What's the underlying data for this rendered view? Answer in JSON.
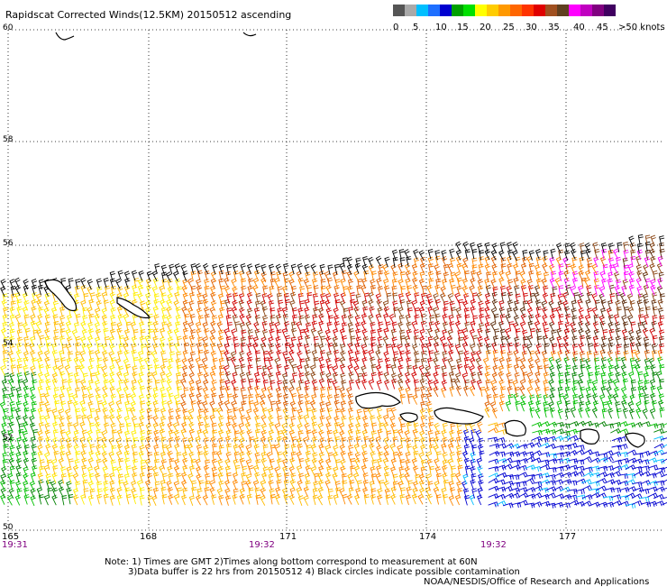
{
  "title": "Rapidscat Corrected Winds(12.5KM) 20150512 ascending",
  "legend": {
    "colors": [
      "#555555",
      "#a9a9a9",
      "#00bfff",
      "#1e6fff",
      "#0000d0",
      "#00a000",
      "#00e000",
      "#ffff00",
      "#ffcc00",
      "#ff9900",
      "#ff6600",
      "#ff3300",
      "#e00000",
      "#a05020",
      "#604020",
      "#ff00ff",
      "#c000c0",
      "#800080",
      "#400060"
    ],
    "ticks": [
      "0",
      "5",
      "10",
      "15",
      "20",
      "25",
      "30",
      "35",
      "40",
      "45",
      ">50 knots"
    ]
  },
  "axes": {
    "lat_labels": [
      "60",
      "58",
      "56",
      "54",
      "52",
      "50"
    ],
    "lon_labels": [
      "165",
      "168",
      "171",
      "174",
      "177"
    ],
    "time_labels": [
      "19:31",
      "19:32",
      "19:32"
    ]
  },
  "footer": {
    "note1": "Note: 1) Times are GMT  2)Times along bottom correspond to measurement at 60N",
    "note2": "3)Data buffer is 22 hrs from 20150512  4) Black circles indicate possible contamination",
    "credit": "NOAA/NESDIS/Office of Research and Applications"
  },
  "palette": {
    "black": "#000000",
    "gray": "#777777",
    "brown": "#8b4513",
    "darkbrown": "#5a2a0a",
    "red": "#d00000",
    "magenta": "#ff00ff",
    "orange": "#ff8800",
    "darkorange": "#e06000",
    "gold": "#ffbb00",
    "yellow": "#ffee00",
    "green": "#00c000",
    "darkgreen": "#008000",
    "blue": "#0000d0",
    "cyan": "#00bfff"
  }
}
